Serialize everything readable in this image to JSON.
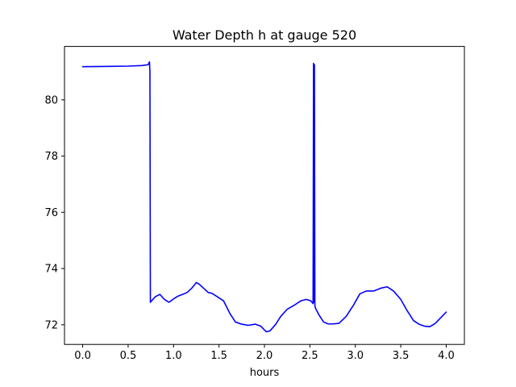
{
  "chart_data": {
    "type": "line",
    "title": "Water Depth h at gauge 520",
    "xlabel": "hours",
    "ylabel": "",
    "xlim": [
      -0.2,
      4.2
    ],
    "ylim": [
      71.3,
      81.9
    ],
    "xticks": [
      0.0,
      0.5,
      1.0,
      1.5,
      2.0,
      2.5,
      3.0,
      3.5,
      4.0
    ],
    "xtick_labels": [
      "0.0",
      "0.5",
      "1.0",
      "1.5",
      "2.0",
      "2.5",
      "3.0",
      "3.5",
      "4.0"
    ],
    "yticks": [
      72,
      74,
      76,
      78,
      80
    ],
    "ytick_labels": [
      "72",
      "74",
      "76",
      "78",
      "80"
    ],
    "grid": false,
    "legend": "none",
    "series": [
      {
        "color": "#0000ff",
        "x": [
          0.0,
          0.3,
          0.5,
          0.65,
          0.72,
          0.735,
          0.74,
          0.745,
          0.75,
          0.8,
          0.85,
          0.9,
          0.95,
          1.0,
          1.05,
          1.1,
          1.15,
          1.2,
          1.25,
          1.28,
          1.33,
          1.38,
          1.42,
          1.48,
          1.55,
          1.62,
          1.68,
          1.75,
          1.82,
          1.9,
          1.96,
          2.02,
          2.06,
          2.12,
          2.18,
          2.25,
          2.33,
          2.4,
          2.46,
          2.51,
          2.535,
          2.54,
          2.545,
          2.55,
          2.555,
          2.56,
          2.6,
          2.65,
          2.7,
          2.75,
          2.82,
          2.9,
          2.98,
          3.05,
          3.12,
          3.2,
          3.28,
          3.35,
          3.42,
          3.5,
          3.57,
          3.64,
          3.7,
          3.76,
          3.82,
          3.88,
          3.94,
          4.0
        ],
        "y": [
          81.18,
          81.19,
          81.2,
          81.22,
          81.25,
          81.35,
          81.0,
          72.8,
          72.82,
          73.0,
          73.08,
          72.9,
          72.8,
          72.92,
          73.02,
          73.08,
          73.15,
          73.3,
          73.5,
          73.45,
          73.3,
          73.15,
          73.12,
          73.0,
          72.85,
          72.4,
          72.1,
          72.02,
          71.98,
          72.02,
          71.95,
          71.75,
          71.78,
          72.0,
          72.3,
          72.55,
          72.7,
          72.85,
          72.9,
          72.85,
          72.75,
          81.3,
          72.8,
          81.25,
          72.7,
          72.6,
          72.35,
          72.1,
          72.03,
          72.03,
          72.05,
          72.3,
          72.7,
          73.1,
          73.2,
          73.2,
          73.3,
          73.35,
          73.2,
          72.9,
          72.5,
          72.15,
          72.02,
          71.95,
          71.93,
          72.05,
          72.25,
          72.45
        ]
      }
    ]
  }
}
